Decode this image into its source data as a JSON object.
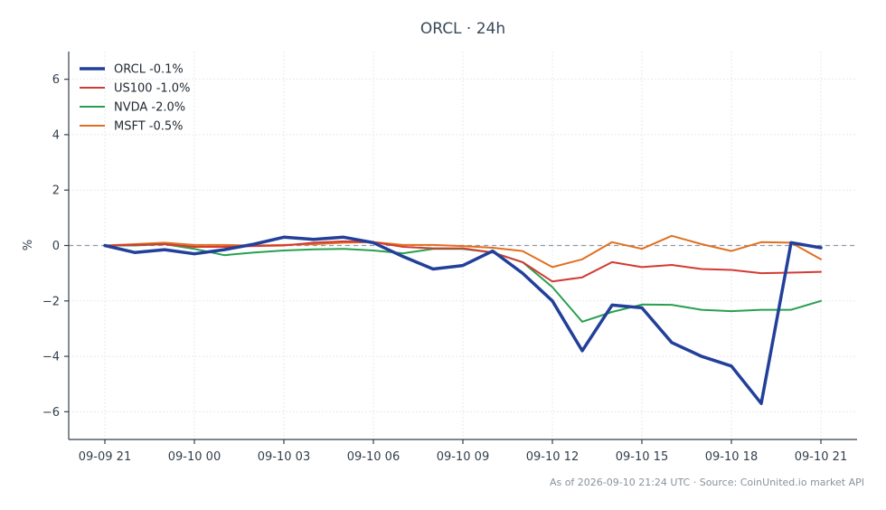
{
  "chart_data": {
    "type": "line",
    "title": "ORCL · 24h",
    "xlabel": "",
    "ylabel": "%",
    "x_ticks": [
      "09-09 21",
      "09-10 00",
      "09-10 03",
      "09-10 06",
      "09-10 09",
      "09-10 12",
      "09-10 15",
      "09-10 18",
      "09-10 21"
    ],
    "ylim": [
      -7,
      7
    ],
    "y_ticks": [
      -6,
      -4,
      -2,
      0,
      2,
      4,
      6
    ],
    "y_tick_labels": [
      "−6",
      "−4",
      "−2",
      "0",
      "2",
      "4",
      "6"
    ],
    "grid": true,
    "legend_position": "top-left",
    "zero_line": true,
    "x": [
      0,
      1,
      2,
      3,
      4,
      5,
      6,
      7,
      8,
      9,
      10,
      11,
      12,
      13,
      14,
      15,
      16,
      17,
      18,
      19,
      20,
      21,
      22,
      23,
      24
    ],
    "series": [
      {
        "name": "ORCL -0.1%",
        "color": "#22409a",
        "width": 3.5,
        "values": [
          0.0,
          -0.25,
          -0.15,
          -0.3,
          -0.15,
          0.05,
          0.3,
          0.22,
          0.3,
          0.1,
          -0.4,
          -0.85,
          -0.72,
          -0.2,
          -1.0,
          -2.0,
          -3.8,
          -2.15,
          -2.25,
          -3.5,
          -4.0,
          -4.35,
          -5.7,
          0.1,
          -0.08
        ]
      },
      {
        "name": "US100 -1.0%",
        "color": "#d33b33",
        "width": 2,
        "values": [
          0.0,
          0.02,
          0.05,
          -0.05,
          -0.05,
          -0.02,
          0.0,
          0.1,
          0.15,
          0.12,
          -0.05,
          -0.1,
          -0.1,
          -0.25,
          -0.6,
          -1.3,
          -1.15,
          -0.6,
          -0.78,
          -0.7,
          -0.85,
          -0.88,
          -1.0,
          -0.98,
          -0.95
        ]
      },
      {
        "name": "NVDA -2.0%",
        "color": "#28a050",
        "width": 2,
        "values": [
          0.0,
          0.0,
          0.05,
          -0.12,
          -0.35,
          -0.25,
          -0.18,
          -0.14,
          -0.12,
          -0.18,
          -0.28,
          -0.12,
          -0.12,
          -0.25,
          -0.6,
          -1.5,
          -2.75,
          -2.4,
          -2.13,
          -2.14,
          -2.32,
          -2.37,
          -2.32,
          -2.32,
          -2.0
        ]
      },
      {
        "name": "MSFT -0.5%",
        "color": "#e07020",
        "width": 2,
        "values": [
          0.0,
          0.05,
          0.1,
          0.02,
          0.02,
          0.0,
          0.02,
          0.05,
          0.1,
          0.12,
          0.02,
          0.02,
          -0.02,
          -0.08,
          -0.2,
          -0.78,
          -0.5,
          0.12,
          -0.12,
          0.35,
          0.05,
          -0.2,
          0.12,
          0.1,
          -0.5
        ]
      }
    ],
    "footer": "As of 2026-09-10 21:24 UTC · Source: CoinUnited.io market API"
  }
}
